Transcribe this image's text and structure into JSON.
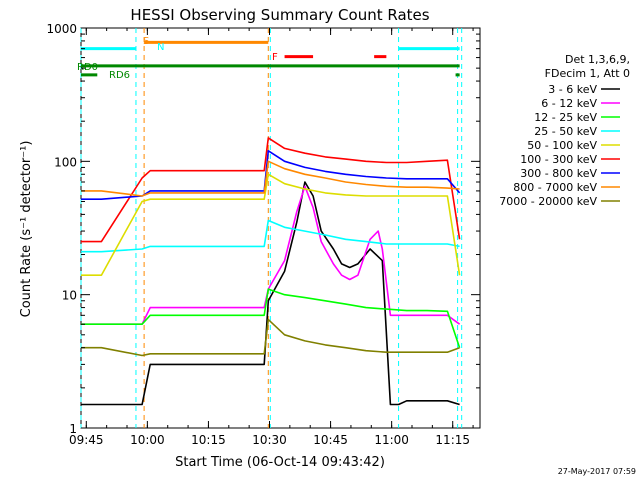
{
  "chart_data": {
    "type": "line",
    "title": "HESSI Observing Summary Count Rates",
    "xlabel": "Start Time (06-Oct-14 09:43:42)",
    "ylabel": "Count Rate (s⁻¹ detector⁻¹)",
    "x_unit": "minutes after 09:43:42",
    "xlim": [
      0,
      98
    ],
    "ylim": [
      1,
      1000
    ],
    "yscale": "log",
    "grid": false,
    "legend_position": "right",
    "x_ticks": [
      {
        "label": "09:45",
        "value": 1.3
      },
      {
        "label": "10:00",
        "value": 16.3
      },
      {
        "label": "10:15",
        "value": 31.3
      },
      {
        "label": "10:30",
        "value": 46.3
      },
      {
        "label": "10:45",
        "value": 61.3
      },
      {
        "label": "11:00",
        "value": 76.3
      },
      {
        "label": "11:15",
        "value": 91.3
      }
    ],
    "y_ticks": [
      {
        "label": "1",
        "value": 1
      },
      {
        "label": "10",
        "value": 10
      },
      {
        "label": "100",
        "value": 100
      },
      {
        "label": "1000",
        "value": 1000
      }
    ],
    "legend_header": [
      "Det 1,3,6,9,",
      "FDecim 1, Att 0"
    ],
    "series": [
      {
        "name": "3 - 6 keV",
        "color": "#000000",
        "x": [
          0,
          5,
          15,
          17,
          45,
          46,
          50,
          53,
          55,
          57,
          59,
          62,
          64,
          66,
          68,
          71,
          74,
          76,
          78,
          80,
          85,
          90,
          93
        ],
        "y": [
          1.5,
          1.5,
          1.5,
          3,
          3,
          9,
          15,
          35,
          70,
          55,
          30,
          22,
          17,
          16,
          17,
          22,
          18,
          1.5,
          1.5,
          1.6,
          1.6,
          1.6,
          1.5
        ]
      },
      {
        "name": "6 - 12 keV",
        "color": "#ff00ff",
        "x": [
          0,
          5,
          15,
          17,
          45,
          46,
          50,
          53,
          55,
          57,
          59,
          62,
          64,
          66,
          68,
          71,
          73,
          74,
          76,
          78,
          85,
          90,
          93
        ],
        "y": [
          6,
          6,
          6,
          8,
          8,
          11,
          18,
          42,
          65,
          45,
          25,
          17,
          14,
          13,
          14,
          26,
          30,
          22,
          7,
          7,
          7,
          7,
          6
        ]
      },
      {
        "name": "12 - 25 keV",
        "color": "#00ff00",
        "x": [
          0,
          5,
          15,
          17,
          45,
          46,
          50,
          55,
          60,
          65,
          70,
          75,
          80,
          85,
          90,
          93
        ],
        "y": [
          6,
          6,
          6,
          7,
          7,
          11,
          10,
          9.5,
          9,
          8.5,
          8,
          7.8,
          7.6,
          7.6,
          7.5,
          4
        ]
      },
      {
        "name": "25 - 50 keV",
        "color": "#00ffff",
        "x": [
          0,
          5,
          15,
          17,
          45,
          46,
          50,
          55,
          60,
          65,
          70,
          75,
          80,
          85,
          90,
          93
        ],
        "y": [
          21,
          21,
          22,
          23,
          23,
          36,
          32,
          30,
          28,
          26,
          25,
          24,
          24,
          24,
          24,
          23
        ]
      },
      {
        "name": "50 - 100 keV",
        "color": "#dddd00",
        "x": [
          0,
          5,
          15,
          17,
          45,
          46,
          50,
          55,
          60,
          65,
          70,
          75,
          80,
          85,
          90,
          93
        ],
        "y": [
          14,
          14,
          50,
          52,
          52,
          80,
          68,
          62,
          58,
          56,
          55,
          55,
          55,
          55,
          55,
          14
        ]
      },
      {
        "name": "100 - 300 keV",
        "color": "#ff0000",
        "x": [
          0,
          5,
          15,
          17,
          45,
          46,
          50,
          55,
          60,
          65,
          70,
          75,
          80,
          85,
          90,
          93
        ],
        "y": [
          25,
          25,
          75,
          85,
          85,
          150,
          125,
          115,
          108,
          104,
          100,
          98,
          98,
          100,
          102,
          26
        ]
      },
      {
        "name": "300 - 800 keV",
        "color": "#0000ff",
        "x": [
          0,
          5,
          15,
          17,
          45,
          46,
          50,
          55,
          60,
          65,
          70,
          75,
          80,
          85,
          90,
          93
        ],
        "y": [
          52,
          52,
          55,
          60,
          60,
          120,
          100,
          90,
          84,
          80,
          77,
          75,
          74,
          74,
          74,
          58
        ]
      },
      {
        "name": "800 - 7000 keV",
        "color": "#ff8800",
        "x": [
          0,
          5,
          15,
          17,
          45,
          46,
          50,
          55,
          60,
          65,
          70,
          75,
          80,
          85,
          90,
          93
        ],
        "y": [
          60,
          60,
          55,
          58,
          58,
          100,
          88,
          80,
          75,
          70,
          67,
          65,
          64,
          64,
          63,
          62
        ]
      },
      {
        "name": "7000 - 20000 keV",
        "color": "#808000",
        "x": [
          0,
          5,
          15,
          17,
          45,
          46,
          50,
          55,
          60,
          65,
          70,
          75,
          80,
          85,
          90,
          93
        ],
        "y": [
          4,
          4,
          3.5,
          3.6,
          3.6,
          6.5,
          5,
          4.5,
          4.2,
          4,
          3.8,
          3.7,
          3.7,
          3.7,
          3.7,
          4
        ]
      }
    ],
    "flags": [
      {
        "label": "",
        "color": "#00ffff",
        "y": 700,
        "segments": [
          [
            0,
            13.5
          ],
          [
            78,
            93
          ]
        ]
      },
      {
        "label": "S",
        "color": "#ff8800",
        "y": 780,
        "segments": [
          [
            15.5,
            46
          ]
        ]
      },
      {
        "label": "N",
        "color": "#00ffff",
        "y": null,
        "segments": []
      },
      {
        "label": "F",
        "color": "#ff0000",
        "y": 610,
        "segments": [
          [
            50,
            57
          ],
          [
            72,
            75
          ]
        ]
      },
      {
        "label": "RD0",
        "color": "#008800",
        "y": 520,
        "segments": [
          [
            0,
            93
          ]
        ]
      },
      {
        "label": "RD6",
        "color": "#008800",
        "y": 445,
        "segments": [
          [
            0,
            4
          ],
          [
            92,
            93
          ]
        ]
      }
    ],
    "vlines": [
      {
        "x": 0,
        "color": "#00ffff"
      },
      {
        "x": 13.5,
        "color": "#00ffff"
      },
      {
        "x": 15.5,
        "color": "#ff8800"
      },
      {
        "x": 46,
        "color": "#ff8800"
      },
      {
        "x": 46.5,
        "color": "#00ffff"
      },
      {
        "x": 78,
        "color": "#00ffff"
      },
      {
        "x": 92.5,
        "color": "#00ffff"
      },
      {
        "x": 93.5,
        "color": "#00ffff"
      }
    ],
    "footer_date": "27-May-2017 07:59"
  }
}
